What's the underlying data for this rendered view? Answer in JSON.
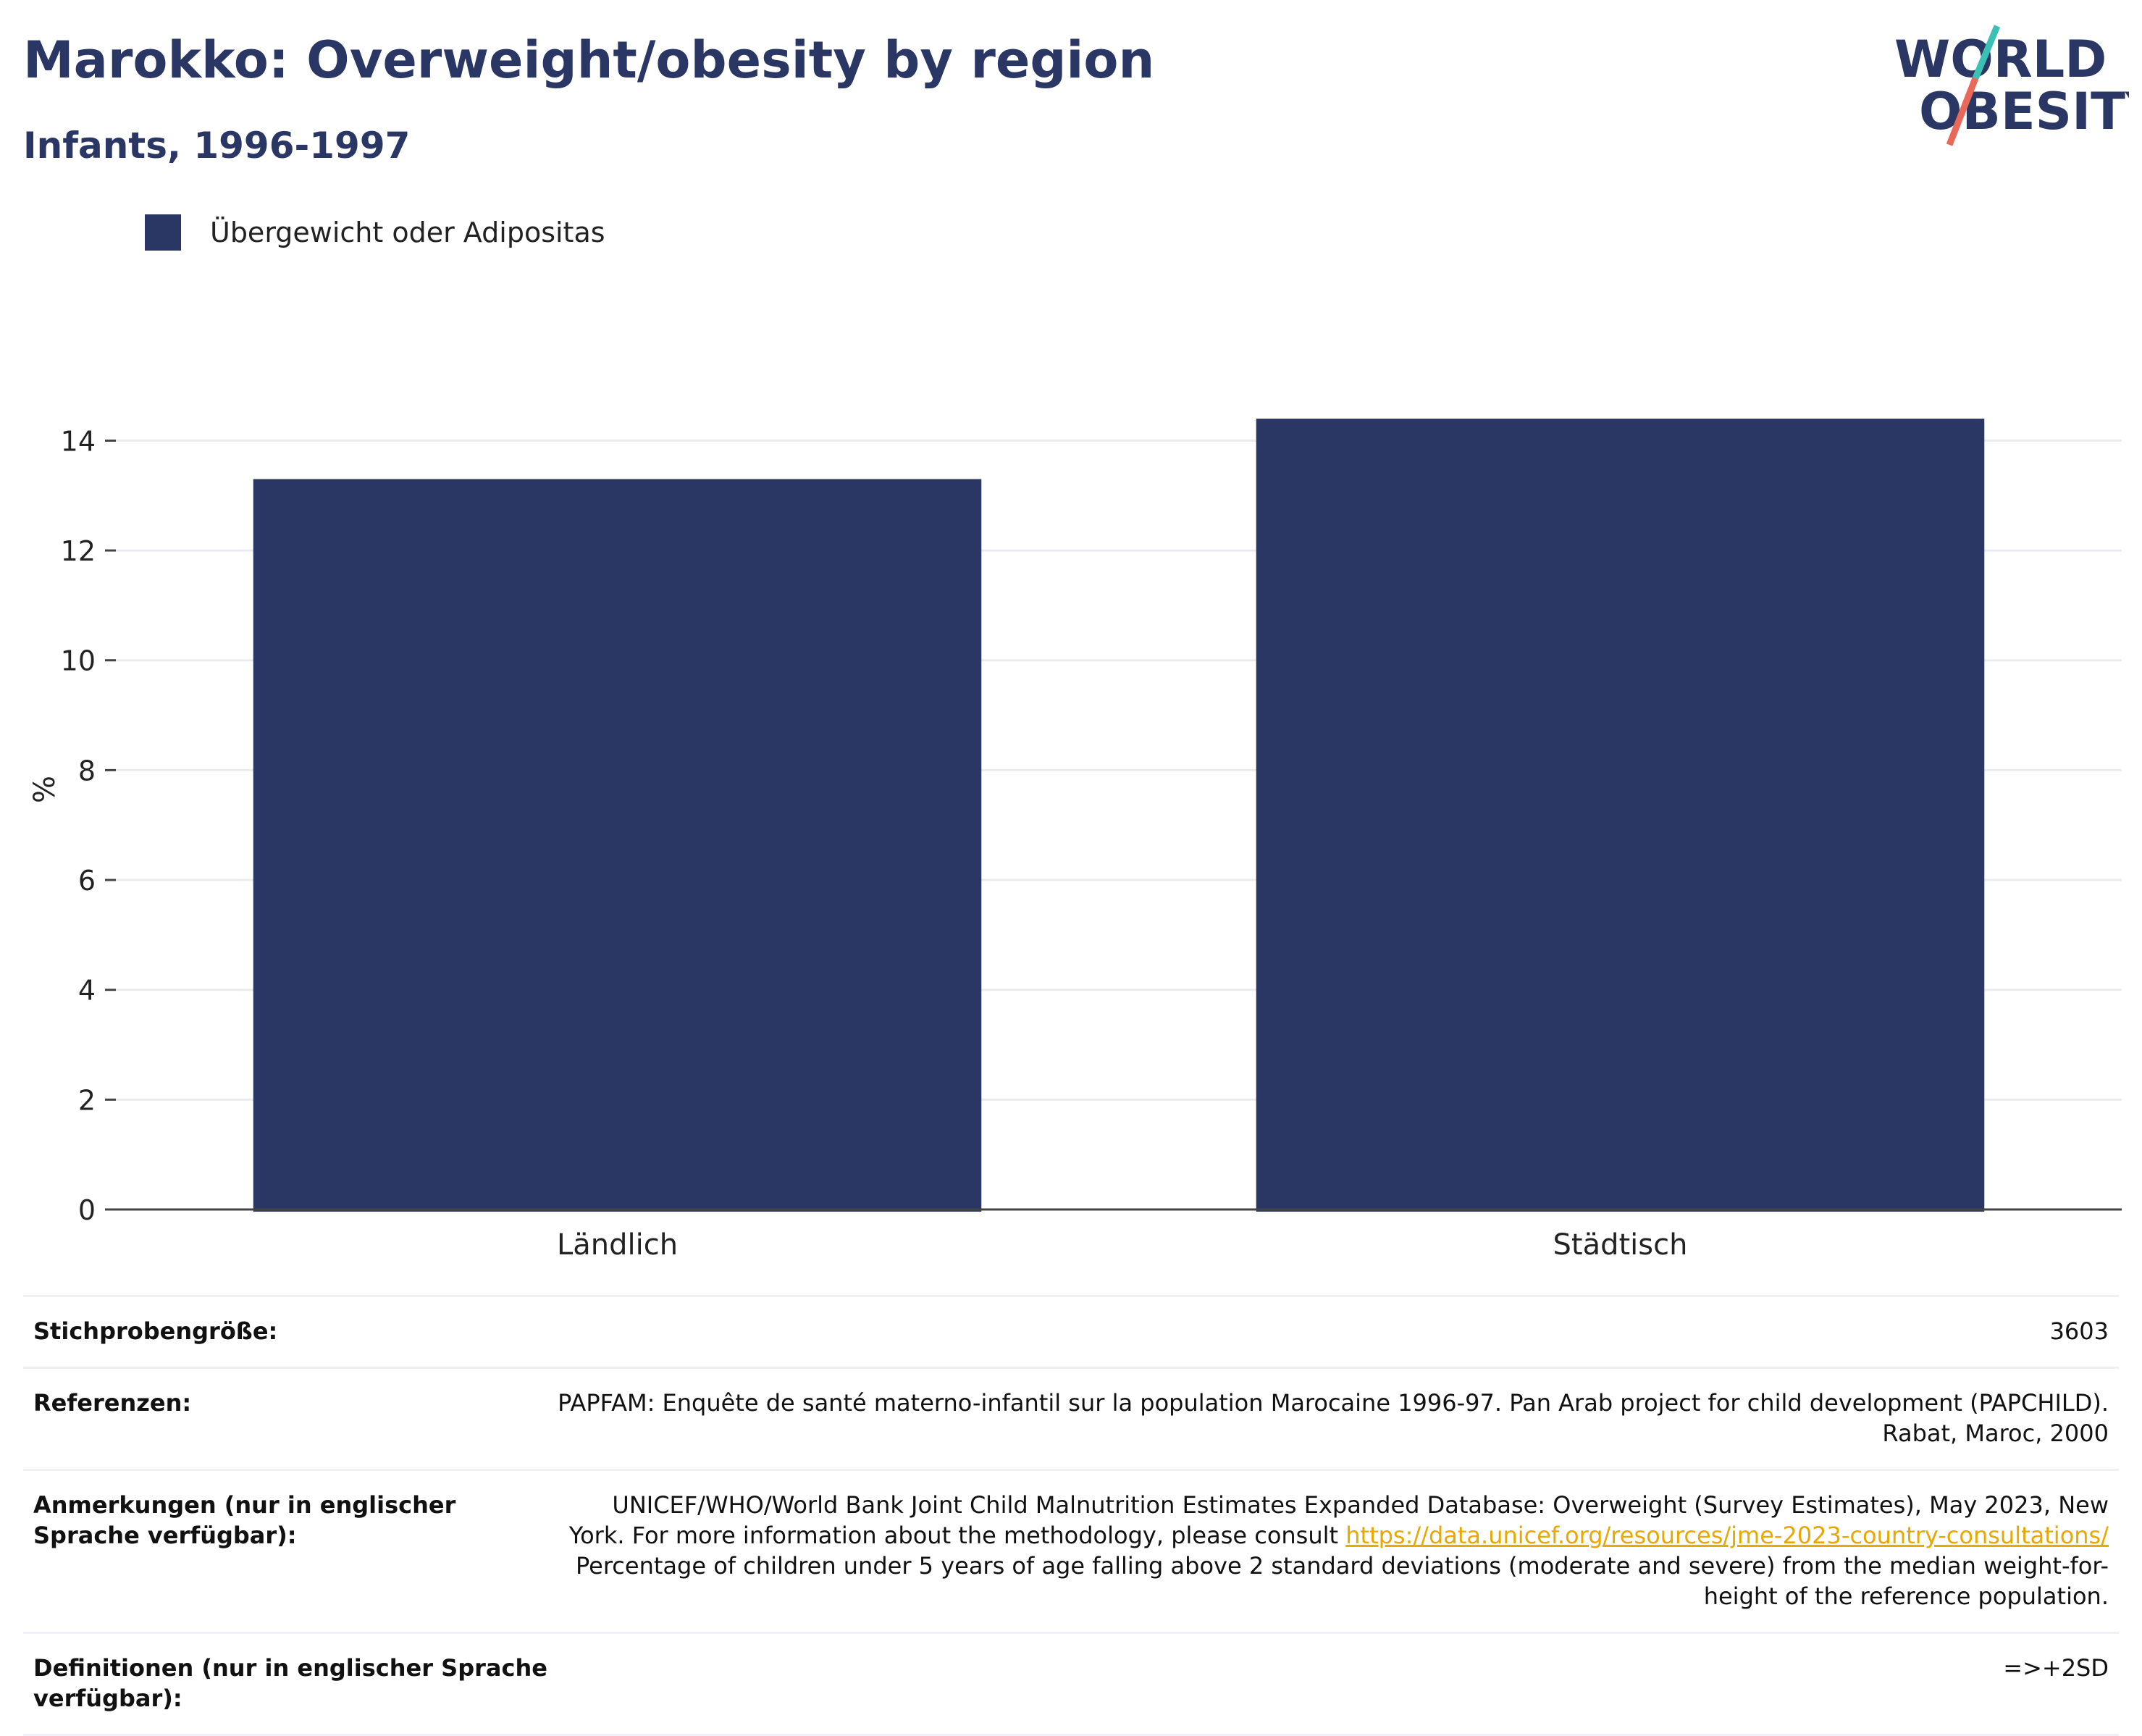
{
  "title": "Marokko: Overweight/obesity by region",
  "subtitle": "Infants, 1996-1997",
  "logo": {
    "line1": "WORLD",
    "line2": "OBESITY"
  },
  "colors": {
    "bar": "#2a3764",
    "title": "#2a3764",
    "link": "#e8a800",
    "logo_teal": "#3cbfb4",
    "logo_red": "#e8685a"
  },
  "chart_data": {
    "type": "bar",
    "categories": [
      "Ländlich",
      "Städtisch"
    ],
    "series": [
      {
        "name": "Übergewicht oder Adipositas",
        "values": [
          13.3,
          14.4
        ]
      }
    ],
    "ylabel": "%",
    "xlabel": "",
    "ylim": [
      0,
      15.1
    ],
    "yticks": [
      0,
      2,
      4,
      6,
      8,
      10,
      12,
      14
    ],
    "grid": true,
    "legend": "top-left"
  },
  "info": {
    "sample_label": "Stichprobengröße:",
    "sample_value": "3603",
    "refs_label": "Referenzen:",
    "refs_value": "PAPFAM: Enquête de santé materno-infantil sur la population Marocaine 1996-97. Pan Arab project for child development (PAPCHILD). Rabat, Maroc, 2000",
    "notes_label": "Anmerkungen (nur in englischer Sprache verfügbar):",
    "notes_text1": "UNICEF/WHO/World Bank Joint Child Malnutrition Estimates Expanded Database: Overweight (Survey Estimates), May 2023, New York. For more information about the methodology, please consult",
    "notes_link": "https://data.unicef.org/resources/jme-2023-country-consultations/",
    "notes_text2": "Percentage of children under 5 years of age falling above 2 standard deviations (moderate and severe) from the median weight-for-height of the reference population.",
    "defs_label": "Definitionen (nur in englischer Sprache verfügbar):",
    "defs_value": "=>+2SD"
  }
}
